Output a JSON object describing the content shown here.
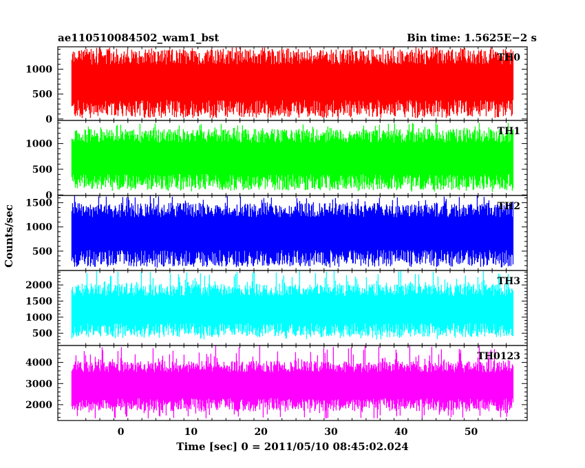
{
  "chart_data": {
    "type": "line",
    "title_left": "ae110510084502_wam1_bst",
    "title_right": "Bin time: 1.5625E−2 s",
    "xlabel": "Time [sec] 0 = 2011/05/10 08:45:02.024",
    "ylabel": "Counts/sec",
    "xlim": [
      -9,
      58
    ],
    "x_data_range": [
      -7,
      56
    ],
    "x_ticks": [
      0,
      10,
      20,
      30,
      40,
      50
    ],
    "x_tick_labels": [
      "0",
      "10",
      "20",
      "30",
      "40",
      "50"
    ],
    "grid": false,
    "panels": [
      {
        "name": "TH0",
        "color": "#ff0000",
        "ylim": [
          -30,
          1450
        ],
        "y_ticks": [
          0,
          500,
          1000
        ],
        "y_tick_labels": [
          "0",
          "500",
          "1000"
        ],
        "typical_range": [
          200,
          1250
        ],
        "extreme_range": [
          40,
          1450
        ]
      },
      {
        "name": "TH1",
        "color": "#00ff00",
        "ylim": [
          -10,
          1450
        ],
        "y_ticks": [
          0,
          500,
          1000
        ],
        "y_tick_labels": [
          "0",
          "500",
          "1000"
        ],
        "typical_range": [
          250,
          1150
        ],
        "extreme_range": [
          60,
          1400
        ]
      },
      {
        "name": "TH2",
        "color": "#0000ff",
        "ylim": [
          100,
          1650
        ],
        "y_ticks": [
          500,
          1000,
          1500
        ],
        "y_tick_labels": [
          "500",
          "1000",
          "1500"
        ],
        "typical_range": [
          350,
          1350
        ],
        "extreme_range": [
          160,
          1650
        ]
      },
      {
        "name": "TH3",
        "color": "#00ffff",
        "ylim": [
          120,
          2450
        ],
        "y_ticks": [
          500,
          1000,
          1500,
          2000
        ],
        "y_tick_labels": [
          "500",
          "1000",
          "1500",
          "2000"
        ],
        "typical_range": [
          600,
          1850
        ],
        "extreme_range": [
          300,
          2450
        ]
      },
      {
        "name": "TH0123",
        "color": "#ff00ff",
        "ylim": [
          1250,
          4800
        ],
        "y_ticks": [
          2000,
          3000,
          4000
        ],
        "y_tick_labels": [
          "2000",
          "3000",
          "4000"
        ],
        "typical_range": [
          2000,
          3800
        ],
        "extreme_range": [
          1350,
          4800
        ]
      }
    ]
  }
}
